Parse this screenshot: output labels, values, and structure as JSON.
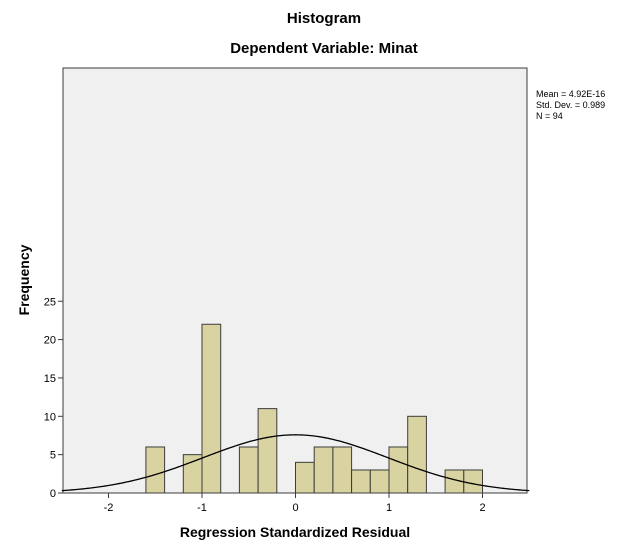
{
  "chart_data": {
    "type": "bar",
    "title": "Histogram",
    "subtitle": "Dependent Variable: Minat",
    "xlabel": "Regression Standardized Residual",
    "ylabel": "Frequency",
    "xlim": [
      -2.5,
      2.5
    ],
    "ylim": [
      0,
      27.5
    ],
    "x_ticks": [
      -2,
      -1,
      0,
      1,
      2
    ],
    "y_ticks": [
      0,
      5,
      10,
      15,
      20,
      25
    ],
    "bin_width": 0.2,
    "bins": [
      {
        "start": -1.6,
        "count": 6
      },
      {
        "start": -1.2,
        "count": 5
      },
      {
        "start": -1.0,
        "count": 22
      },
      {
        "start": -0.6,
        "count": 6
      },
      {
        "start": -0.4,
        "count": 11
      },
      {
        "start": 0.0,
        "count": 4
      },
      {
        "start": 0.2,
        "count": 6
      },
      {
        "start": 0.4,
        "count": 6
      },
      {
        "start": 0.6,
        "count": 3
      },
      {
        "start": 0.8,
        "count": 3
      },
      {
        "start": 1.0,
        "count": 6
      },
      {
        "start": 1.2,
        "count": 10
      },
      {
        "start": 1.6,
        "count": 3
      },
      {
        "start": 1.8,
        "count": 3
      }
    ],
    "normal_curve": {
      "mean": 4.92e-16,
      "std_dev": 0.989,
      "n": 94
    },
    "stats": [
      "Mean = 4.92E-16",
      "Std. Dev. = 0.989",
      "N = 94"
    ],
    "colors": {
      "bar_fill": "#d8d3a0",
      "bar_stroke": "#3c3c3c",
      "plot_bg": "#f0f0f0",
      "curve": "#000000"
    },
    "grid": false,
    "legend": "none"
  }
}
